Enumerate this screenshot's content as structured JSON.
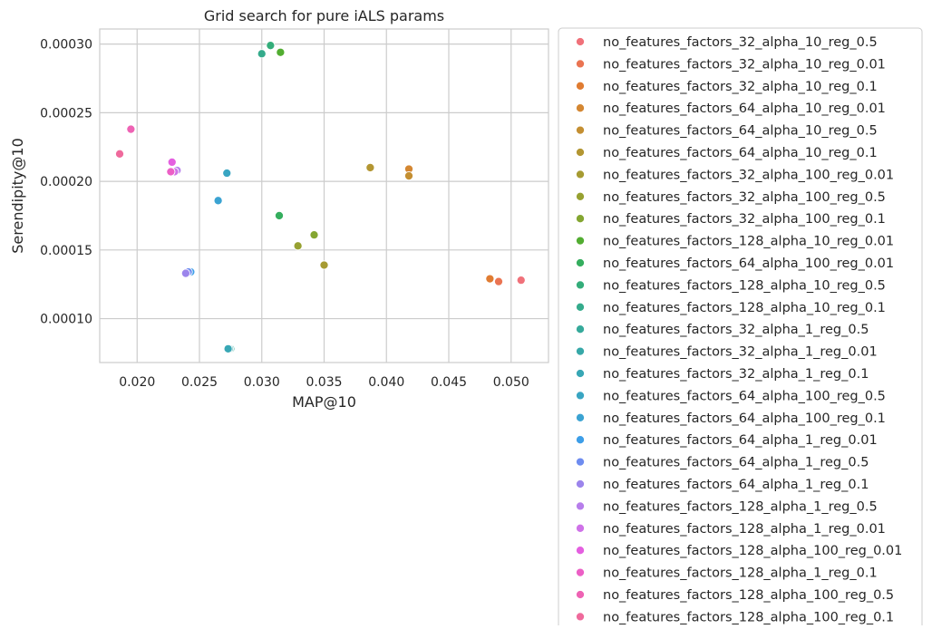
{
  "chart_data": {
    "type": "scatter",
    "title": "Grid search for pure iALS params",
    "xlabel": "MAP@10",
    "ylabel": "Serendipity@10",
    "xlim": [
      0.017,
      0.053
    ],
    "ylim": [
      6.8e-05,
      0.000311
    ],
    "xticks": [
      0.02,
      0.025,
      0.03,
      0.035,
      0.04,
      0.045,
      0.05
    ],
    "xtick_labels": [
      "0.020",
      "0.025",
      "0.030",
      "0.035",
      "0.040",
      "0.045",
      "0.050"
    ],
    "yticks": [
      0.0001,
      0.00015,
      0.0002,
      0.00025,
      0.0003
    ],
    "ytick_labels": [
      "0.00010",
      "0.00015",
      "0.00020",
      "0.00025",
      "0.00030"
    ],
    "grid": true,
    "legend_position": "outside-right",
    "series": [
      {
        "name": "no_features_factors_32_alpha_10_reg_0.5",
        "color": "#f0717a",
        "points": [
          [
            0.0508,
            0.000128
          ]
        ]
      },
      {
        "name": "no_features_factors_32_alpha_10_reg_0.01",
        "color": "#ea7452",
        "points": [
          [
            0.049,
            0.000127
          ]
        ]
      },
      {
        "name": "no_features_factors_32_alpha_10_reg_0.1",
        "color": "#e07c32",
        "points": [
          [
            0.0483,
            0.000129
          ]
        ]
      },
      {
        "name": "no_features_factors_64_alpha_10_reg_0.01",
        "color": "#d48732",
        "points": [
          [
            0.0418,
            0.000209
          ]
        ]
      },
      {
        "name": "no_features_factors_64_alpha_10_reg_0.5",
        "color": "#c48f32",
        "points": [
          [
            0.0418,
            0.000204
          ]
        ]
      },
      {
        "name": "no_features_factors_64_alpha_10_reg_0.1",
        "color": "#b39632",
        "points": [
          [
            0.0387,
            0.00021
          ]
        ]
      },
      {
        "name": "no_features_factors_32_alpha_100_reg_0.01",
        "color": "#a69b32",
        "points": [
          [
            0.035,
            0.000139
          ]
        ]
      },
      {
        "name": "no_features_factors_32_alpha_100_reg_0.5",
        "color": "#97a131",
        "points": [
          [
            0.0329,
            0.000153
          ]
        ]
      },
      {
        "name": "no_features_factors_32_alpha_100_reg_0.1",
        "color": "#84a631",
        "points": [
          [
            0.0342,
            0.000161
          ]
        ]
      },
      {
        "name": "no_features_factors_128_alpha_10_reg_0.01",
        "color": "#52ad31",
        "points": [
          [
            0.0315,
            0.000294
          ]
        ]
      },
      {
        "name": "no_features_factors_64_alpha_100_reg_0.01",
        "color": "#35ae5e",
        "points": [
          [
            0.0314,
            0.000175
          ]
        ]
      },
      {
        "name": "no_features_factors_128_alpha_10_reg_0.5",
        "color": "#34ad7a",
        "points": [
          [
            0.0307,
            0.000299
          ]
        ]
      },
      {
        "name": "no_features_factors_128_alpha_10_reg_0.1",
        "color": "#35ab8c",
        "points": [
          [
            0.03,
            0.000293
          ]
        ]
      },
      {
        "name": "no_features_factors_32_alpha_1_reg_0.5",
        "color": "#36aa9b",
        "points": [
          [
            0.0275,
            7.8e-05
          ]
        ]
      },
      {
        "name": "no_features_factors_32_alpha_1_reg_0.01",
        "color": "#37a8a8",
        "points": [
          [
            0.0274,
            7.8e-05
          ]
        ]
      },
      {
        "name": "no_features_factors_32_alpha_1_reg_0.1",
        "color": "#38a7b5",
        "points": [
          [
            0.0273,
            7.8e-05
          ]
        ]
      },
      {
        "name": "no_features_factors_64_alpha_100_reg_0.5",
        "color": "#39a5c2",
        "points": [
          [
            0.0272,
            0.000206
          ]
        ]
      },
      {
        "name": "no_features_factors_64_alpha_100_reg_0.1",
        "color": "#3ba3d2",
        "points": [
          [
            0.0265,
            0.000186
          ]
        ]
      },
      {
        "name": "no_features_factors_64_alpha_1_reg_0.01",
        "color": "#3d9ee8",
        "points": [
          [
            0.0243,
            0.000134
          ]
        ]
      },
      {
        "name": "no_features_factors_64_alpha_1_reg_0.5",
        "color": "#6e8cf0",
        "points": [
          [
            0.0241,
            0.000134
          ]
        ]
      },
      {
        "name": "no_features_factors_64_alpha_1_reg_0.1",
        "color": "#9c85ec",
        "points": [
          [
            0.0239,
            0.000133
          ]
        ]
      },
      {
        "name": "no_features_factors_128_alpha_1_reg_0.5",
        "color": "#b77eeb",
        "points": [
          [
            0.0232,
            0.000208
          ]
        ]
      },
      {
        "name": "no_features_factors_128_alpha_1_reg_0.01",
        "color": "#cf72e8",
        "points": [
          [
            0.023,
            0.000207
          ]
        ]
      },
      {
        "name": "no_features_factors_128_alpha_100_reg_0.01",
        "color": "#e45fe0",
        "points": [
          [
            0.0228,
            0.000214
          ]
        ]
      },
      {
        "name": "no_features_factors_128_alpha_1_reg_0.1",
        "color": "#ec5fc6",
        "points": [
          [
            0.0227,
            0.000207
          ]
        ]
      },
      {
        "name": "no_features_factors_128_alpha_100_reg_0.5",
        "color": "#ee63b4",
        "points": [
          [
            0.0195,
            0.000238
          ]
        ]
      },
      {
        "name": "no_features_factors_128_alpha_100_reg_0.1",
        "color": "#ef6a9c",
        "points": [
          [
            0.0186,
            0.00022
          ]
        ]
      }
    ]
  },
  "colors": {
    "grid": "#cccccc",
    "axes_edge": "#cccccc",
    "legend_edge": "#cccccc",
    "marker_edge": "#ffffff"
  }
}
